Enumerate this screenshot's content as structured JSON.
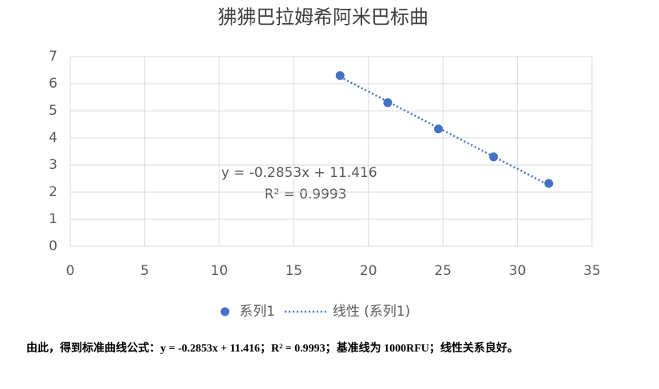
{
  "chart_data": {
    "type": "scatter",
    "title": "狒狒巴拉姆希阿米巴标曲",
    "series": [
      {
        "name": "系列1",
        "color": "#4472c4",
        "x": [
          18.1,
          21.3,
          24.7,
          28.4,
          32.1
        ],
        "values": [
          6.3,
          5.3,
          4.33,
          3.3,
          2.32
        ]
      },
      {
        "name": "线性 (系列1)",
        "color": "#4472c4",
        "type": "line",
        "dash": "dotted",
        "x": [
          18.1,
          32.1
        ],
        "values": [
          6.252,
          2.258
        ]
      }
    ],
    "xlim": [
      0,
      35
    ],
    "xticks": [
      0,
      5,
      10,
      15,
      20,
      25,
      30,
      35
    ],
    "ylim": [
      0,
      7
    ],
    "yticks": [
      0,
      1,
      2,
      3,
      4,
      5,
      6,
      7
    ],
    "grid": true,
    "legend": "bottom",
    "annotations": [
      "y = -0.2853x + 11.416",
      "R² = 0.9993"
    ]
  },
  "caption": "由此，得到标准曲线公式：y = -0.2853x + 11.416；R² = 0.9993；基准线为 1000RFU；线性关系良好。"
}
